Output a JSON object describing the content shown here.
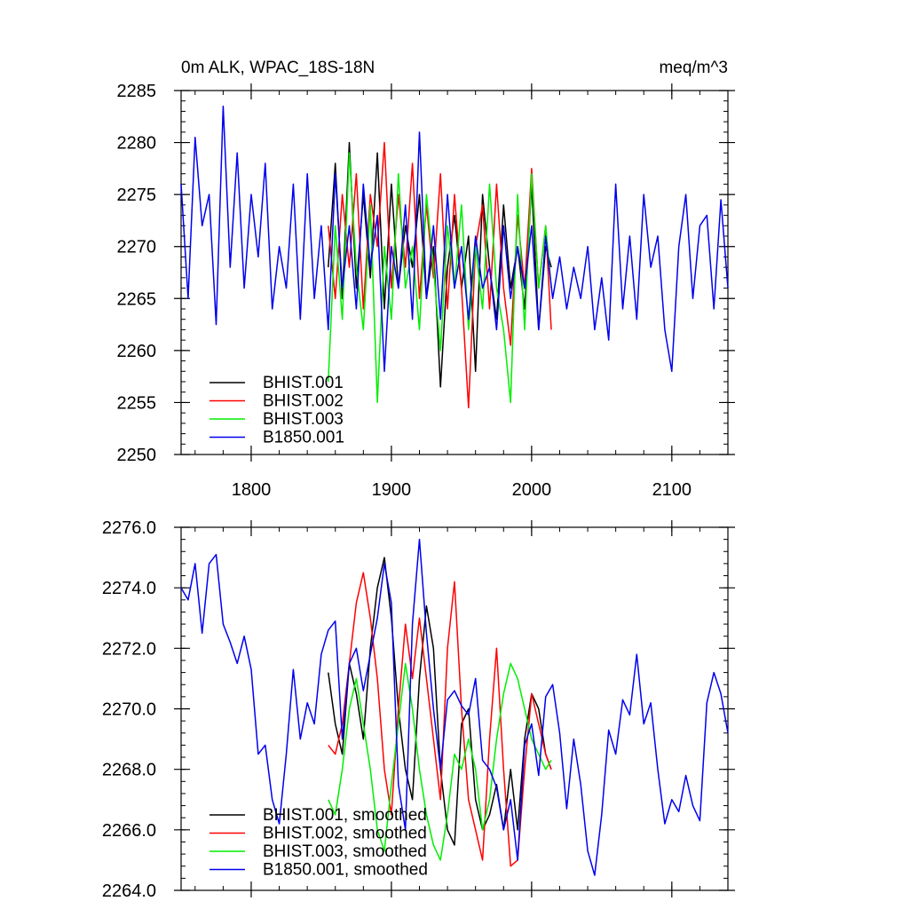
{
  "chart_data": [
    {
      "type": "line",
      "title": "0m ALK, WPAC_18S-18N",
      "unit_label": "meq/m^3",
      "xlim": [
        1750,
        2140
      ],
      "ylim": [
        2250,
        2285
      ],
      "x_ticks": [
        1800,
        1900,
        2000,
        2100
      ],
      "x_tick_labels": [
        "1800",
        "1900",
        "2000",
        "2100"
      ],
      "y_ticks": [
        2250,
        2255,
        2260,
        2265,
        2270,
        2275,
        2280,
        2285
      ],
      "y_tick_labels": [
        "2250",
        "2255",
        "2260",
        "2265",
        "2270",
        "2275",
        "2280",
        "2285"
      ],
      "grid": false,
      "legend_position": "bottom-left",
      "series": [
        {
          "name": "BHIST.001",
          "color": "#000000",
          "x": [
            1855,
            1860,
            1865,
            1870,
            1875,
            1880,
            1885,
            1890,
            1895,
            1900,
            1905,
            1910,
            1915,
            1920,
            1925,
            1930,
            1935,
            1940,
            1945,
            1950,
            1955,
            1960,
            1965,
            1970,
            1975,
            1980,
            1985,
            1990,
            1995,
            2000,
            2005,
            2010,
            2014
          ],
          "y": [
            2268,
            2278,
            2265,
            2280,
            2266,
            2275,
            2267,
            2279,
            2264,
            2276,
            2266,
            2272,
            2268,
            2275,
            2265,
            2270,
            2256.5,
            2268,
            2273,
            2266,
            2271,
            2258,
            2275,
            2268,
            2263,
            2274,
            2266,
            2270,
            2264,
            2276,
            2262,
            2270,
            2268
          ]
        },
        {
          "name": "BHIST.002",
          "color": "#ff0000",
          "x": [
            1855,
            1860,
            1865,
            1870,
            1875,
            1880,
            1885,
            1890,
            1895,
            1900,
            1905,
            1910,
            1915,
            1920,
            1925,
            1930,
            1935,
            1940,
            1945,
            1950,
            1955,
            1960,
            1965,
            1970,
            1975,
            1980,
            1985,
            1990,
            1995,
            2000,
            2005,
            2010,
            2014
          ],
          "y": [
            2272,
            2265,
            2275,
            2268,
            2277,
            2264,
            2275,
            2270,
            2280,
            2266,
            2275,
            2268,
            2278,
            2265,
            2274,
            2267,
            2277,
            2264,
            2275,
            2266,
            2254.5,
            2270,
            2274,
            2264,
            2276,
            2266,
            2260.5,
            2273,
            2266,
            2277.5,
            2266,
            2272,
            2262
          ]
        },
        {
          "name": "BHIST.003",
          "color": "#00ee00",
          "x": [
            1855,
            1860,
            1865,
            1870,
            1875,
            1880,
            1885,
            1890,
            1895,
            1900,
            1905,
            1910,
            1915,
            1920,
            1925,
            1930,
            1935,
            1940,
            1945,
            1950,
            1955,
            1960,
            1965,
            1970,
            1975,
            1980,
            1985,
            1990,
            1995,
            2000,
            2005,
            2010,
            2014
          ],
          "y": [
            2257,
            2272,
            2263,
            2279,
            2268,
            2262,
            2274,
            2255,
            2270,
            2263,
            2277,
            2266,
            2270,
            2262,
            2275,
            2268,
            2260,
            2272,
            2266,
            2274,
            2262,
            2270,
            2264,
            2276,
            2266,
            2262,
            2255,
            2275,
            2262,
            2277,
            2266,
            2272,
            2266
          ]
        },
        {
          "name": "B1850.001",
          "color": "#0000ee",
          "x": [
            1750,
            1755,
            1760,
            1765,
            1770,
            1775,
            1780,
            1785,
            1790,
            1795,
            1800,
            1805,
            1810,
            1815,
            1820,
            1825,
            1830,
            1835,
            1840,
            1845,
            1850,
            1855,
            1860,
            1865,
            1870,
            1875,
            1880,
            1885,
            1890,
            1895,
            1900,
            1905,
            1910,
            1915,
            1920,
            1925,
            1930,
            1935,
            1940,
            1945,
            1950,
            1955,
            1960,
            1965,
            1970,
            1975,
            1980,
            1985,
            1990,
            1995,
            2000,
            2005,
            2010,
            2015,
            2020,
            2025,
            2030,
            2035,
            2040,
            2045,
            2050,
            2055,
            2060,
            2065,
            2070,
            2075,
            2080,
            2085,
            2090,
            2095,
            2100,
            2105,
            2110,
            2115,
            2120,
            2125,
            2130,
            2135,
            2140
          ],
          "y": [
            2276,
            2265,
            2280.5,
            2272,
            2275,
            2262.5,
            2283.5,
            2268,
            2279,
            2266,
            2275,
            2269,
            2278,
            2264,
            2270,
            2266,
            2276,
            2263,
            2277,
            2265,
            2272,
            2262,
            2277,
            2266,
            2272,
            2264,
            2276,
            2268,
            2273,
            2258,
            2270,
            2266,
            2274,
            2263,
            2281,
            2265,
            2272,
            2263,
            2275,
            2266,
            2270,
            2263,
            2271,
            2266,
            2268,
            2262,
            2272,
            2265,
            2270,
            2266,
            2272,
            2262,
            2271,
            2265,
            2269,
            2264,
            2268,
            2265,
            2270,
            2262,
            2267,
            2261,
            2276,
            2264,
            2271,
            2263,
            2275,
            2268,
            2271,
            2262,
            2258,
            2270,
            2275,
            2265,
            2272,
            2273,
            2264,
            2274.5,
            2266
          ]
        }
      ]
    },
    {
      "type": "line",
      "title": "",
      "xlim": [
        1750,
        2140
      ],
      "ylim": [
        2264,
        2276
      ],
      "x_ticks": [
        1800,
        1900,
        2000,
        2100
      ],
      "y_ticks": [
        2264,
        2266,
        2268,
        2270,
        2272,
        2274,
        2276
      ],
      "y_tick_labels": [
        "2264.0",
        "2266.0",
        "2268.0",
        "2270.0",
        "2272.0",
        "2274.0",
        "2276.0"
      ],
      "grid": false,
      "legend_position": "bottom-left",
      "series": [
        {
          "name": "BHIST.001, smoothed",
          "color": "#000000",
          "x": [
            1855,
            1860,
            1865,
            1870,
            1875,
            1880,
            1885,
            1890,
            1895,
            1900,
            1905,
            1910,
            1915,
            1920,
            1925,
            1930,
            1935,
            1940,
            1945,
            1950,
            1955,
            1960,
            1965,
            1970,
            1975,
            1980,
            1985,
            1990,
            1995,
            2000,
            2005,
            2010,
            2014
          ],
          "y": [
            2271.2,
            2269.5,
            2268.5,
            2271.5,
            2270.5,
            2269,
            2272,
            2274,
            2275,
            2273,
            2270,
            2268,
            2267,
            2271,
            2273.4,
            2272,
            2268,
            2266,
            2265.5,
            2269.5,
            2270,
            2267,
            2266,
            2266.5,
            2267.5,
            2266,
            2268,
            2266,
            2269,
            2270.5,
            2270,
            2268.5,
            2268
          ]
        },
        {
          "name": "BHIST.002, smoothed",
          "color": "#ff0000",
          "x": [
            1855,
            1860,
            1865,
            1870,
            1875,
            1880,
            1885,
            1890,
            1895,
            1900,
            1905,
            1910,
            1915,
            1920,
            1925,
            1930,
            1935,
            1940,
            1945,
            1950,
            1955,
            1960,
            1965,
            1970,
            1975,
            1980,
            1985,
            1990,
            1995,
            2000,
            2005,
            2010,
            2014
          ],
          "y": [
            2268.8,
            2268.5,
            2269.5,
            2271.5,
            2273.5,
            2274.5,
            2273,
            2271,
            2268,
            2266.5,
            2270,
            2272.8,
            2271,
            2273,
            2271,
            2269,
            2267,
            2272,
            2274.2,
            2270,
            2267,
            2266,
            2265,
            2269,
            2272,
            2268,
            2264.8,
            2265,
            2268,
            2270.5,
            2269.5,
            2268.5,
            2268
          ]
        },
        {
          "name": "BHIST.003, smoothed",
          "color": "#00ee00",
          "x": [
            1855,
            1860,
            1865,
            1870,
            1875,
            1880,
            1885,
            1890,
            1895,
            1900,
            1905,
            1910,
            1915,
            1920,
            1925,
            1930,
            1935,
            1940,
            1945,
            1950,
            1955,
            1960,
            1965,
            1970,
            1975,
            1980,
            1985,
            1990,
            1995,
            2000,
            2005,
            2010,
            2014
          ],
          "y": [
            2267,
            2266.5,
            2268,
            2270,
            2271,
            2269.5,
            2268,
            2266,
            2265.3,
            2267.5,
            2269.5,
            2271.5,
            2270,
            2268,
            2266.5,
            2265.5,
            2265,
            2266.5,
            2268.5,
            2268,
            2269,
            2268,
            2266,
            2267,
            2269,
            2270.5,
            2271.5,
            2271,
            2270,
            2269,
            2268.5,
            2268,
            2268.3
          ]
        },
        {
          "name": "B1850.001, smoothed",
          "color": "#0000ee",
          "x": [
            1750,
            1755,
            1760,
            1765,
            1770,
            1775,
            1780,
            1785,
            1790,
            1795,
            1800,
            1805,
            1810,
            1815,
            1820,
            1825,
            1830,
            1835,
            1840,
            1845,
            1850,
            1855,
            1860,
            1865,
            1870,
            1875,
            1880,
            1885,
            1890,
            1895,
            1900,
            1905,
            1910,
            1915,
            1920,
            1925,
            1930,
            1935,
            1940,
            1945,
            1950,
            1955,
            1960,
            1965,
            1970,
            1975,
            1980,
            1985,
            1990,
            1995,
            2000,
            2005,
            2010,
            2015,
            2020,
            2025,
            2030,
            2035,
            2040,
            2045,
            2050,
            2055,
            2060,
            2065,
            2070,
            2075,
            2080,
            2085,
            2090,
            2095,
            2100,
            2105,
            2110,
            2115,
            2120,
            2125,
            2130,
            2135,
            2140
          ],
          "y": [
            2274,
            2273.6,
            2274.8,
            2272.5,
            2274.8,
            2275.1,
            2272.8,
            2272.2,
            2271.5,
            2272.4,
            2271.3,
            2268.5,
            2268.8,
            2267,
            2266.2,
            2268.5,
            2271.3,
            2269,
            2270.2,
            2269.5,
            2271.8,
            2272.6,
            2272.9,
            2269,
            2271.5,
            2272,
            2270.6,
            2271.8,
            2273,
            2274.8,
            2273.5,
            2267.5,
            2266,
            2272.8,
            2275.6,
            2272.5,
            2270,
            2268,
            2270.3,
            2270.6,
            2270.1,
            2269.8,
            2271,
            2268.3,
            2268,
            2267.4,
            2266,
            2267,
            2265,
            2268.8,
            2269.5,
            2267.8,
            2270.4,
            2270.8,
            2269.2,
            2266.7,
            2269,
            2267.5,
            2265.3,
            2264.5,
            2266.5,
            2269.3,
            2268.5,
            2270.3,
            2269.8,
            2271.8,
            2269.5,
            2270.2,
            2268,
            2266.2,
            2267,
            2266.6,
            2267.8,
            2266.8,
            2266.3,
            2270.2,
            2271.2,
            2270.5,
            2269.2
          ]
        }
      ]
    }
  ]
}
